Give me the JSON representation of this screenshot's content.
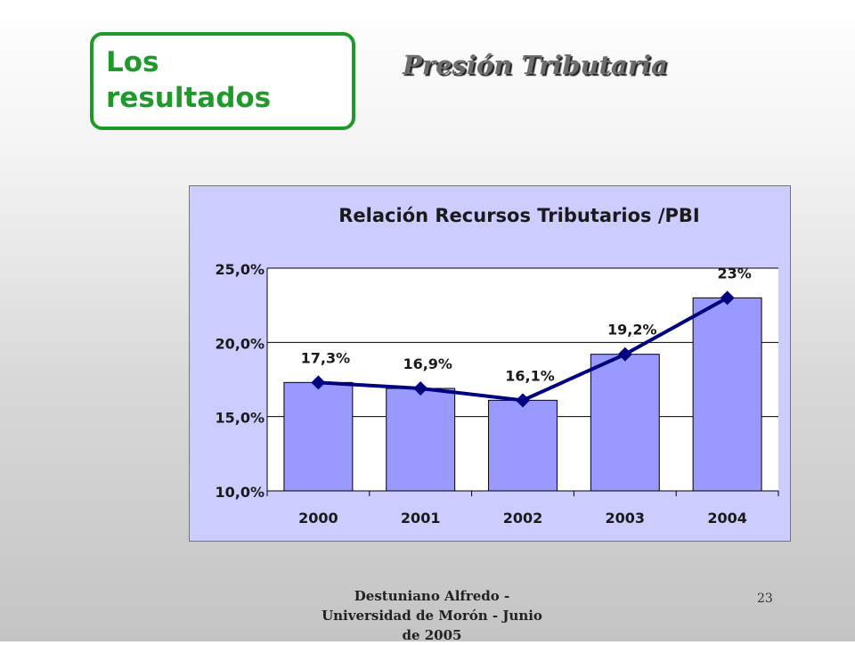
{
  "slide": {
    "section_label": " Los\nresultados",
    "title": "Presión Tributaria",
    "footer": "Destuniano Alfredo  -\nUniversidad de Morón - Junio\nde 2005",
    "page_number": "23"
  },
  "colors": {
    "section_green": "#1f9a2a",
    "panel_bg": "#ccccff",
    "bar_fill": "#9999ff",
    "line_color": "#000080"
  },
  "chart_data": {
    "type": "bar",
    "title": "Relación Recursos Tributarios /PBI",
    "categories": [
      "2000",
      "2001",
      "2002",
      "2003",
      "2004"
    ],
    "series": [
      {
        "values": [
          17.3,
          16.9,
          16.1,
          19.2,
          23.0
        ],
        "render": "bar"
      },
      {
        "values": [
          17.3,
          16.9,
          16.1,
          19.2,
          23.0
        ],
        "render": "line",
        "marker": "diamond"
      }
    ],
    "data_labels": [
      "17,3%",
      "16,9%",
      "16,1%",
      "19,2%",
      "23%"
    ],
    "y_ticks": [
      {
        "value": 10,
        "label": "10,0%"
      },
      {
        "value": 15,
        "label": "15,0%"
      },
      {
        "value": 20,
        "label": "20,0%"
      },
      {
        "value": 25,
        "label": "25,0%"
      }
    ],
    "ylim": [
      10,
      25
    ],
    "grid": true,
    "legend": "none"
  }
}
